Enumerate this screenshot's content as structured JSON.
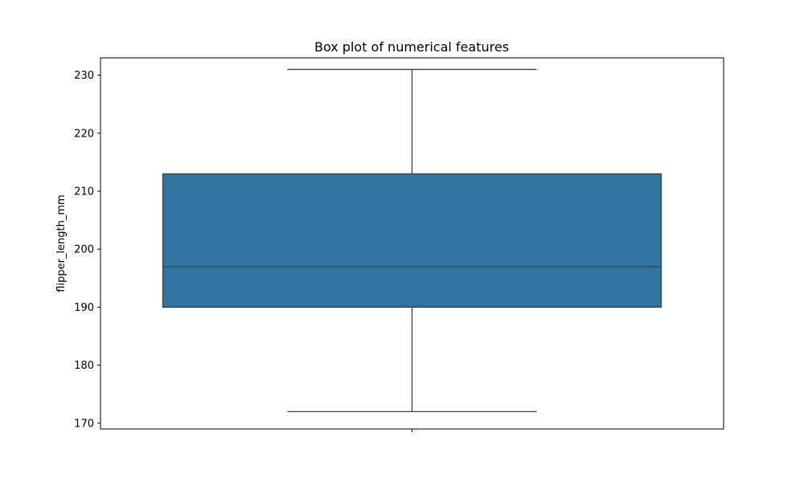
{
  "chart_data": {
    "type": "box",
    "title": "Box plot of numerical features",
    "xlabel": "",
    "ylabel": "flipper_length_mm",
    "ylim": [
      169,
      233
    ],
    "yticks": [
      170,
      180,
      190,
      200,
      210,
      220,
      230
    ],
    "grid": false,
    "legend": "none",
    "box_color": "#3274a1",
    "line_color": "#3f3f3f",
    "boxes": [
      {
        "variable": "flipper_length_mm",
        "whisker_low": 172,
        "q1": 190,
        "median": 197,
        "q3": 213,
        "whisker_high": 231
      }
    ]
  }
}
